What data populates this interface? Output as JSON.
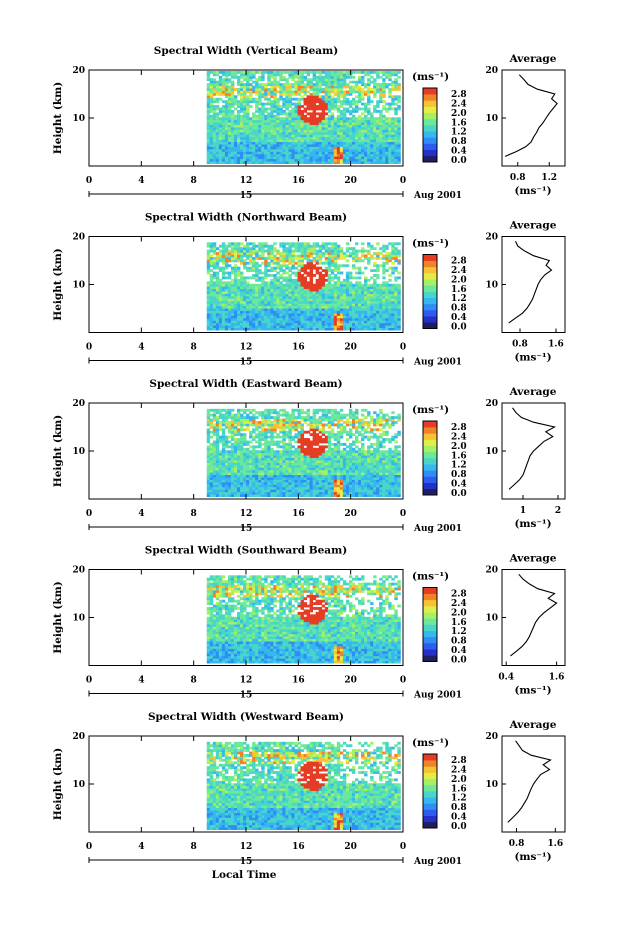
{
  "figure": {
    "xlabel": "Local Time",
    "date_label": "Aug 2001",
    "day_label": "15",
    "ylabel": "Height (km)",
    "colorbar_unit": "(ms⁻¹)",
    "colorbar_ticks": [
      "0.0",
      "0.4",
      "0.8",
      "1.2",
      "1.6",
      "2.0",
      "2.4",
      "2.8"
    ],
    "avg_title": "Average",
    "avg_xlabel": "(ms⁻¹)",
    "x_ticks": [
      "0",
      "4",
      "8",
      "12",
      "16",
      "20",
      "0"
    ],
    "y_ticks": [
      "20",
      "10"
    ]
  },
  "chart_data": [
    {
      "type": "heatmap",
      "title": "Spectral Width (Vertical Beam)",
      "xlabel": "Local Time",
      "ylabel": "Height (km)",
      "xlim": [
        0,
        24
      ],
      "ylim": [
        0,
        20
      ],
      "data_start_hour": 9,
      "colorbar_range": [
        0.0,
        2.8
      ],
      "average_profile": {
        "title": "Average",
        "xlim": [
          0.6,
          1.4
        ],
        "x_ticks": [
          "0.8",
          "1.2"
        ],
        "xlabel": "(ms⁻¹)",
        "height_km": [
          2,
          3,
          4,
          5,
          6,
          7,
          8,
          9,
          10,
          11,
          12,
          13,
          14,
          15,
          16,
          17,
          18,
          19
        ],
        "width": [
          0.64,
          0.78,
          0.9,
          0.97,
          1.0,
          1.04,
          1.07,
          1.12,
          1.16,
          1.2,
          1.25,
          1.3,
          1.23,
          1.27,
          1.05,
          0.93,
          0.88,
          0.82
        ]
      }
    },
    {
      "type": "heatmap",
      "title": "Spectral Width (Northward Beam)",
      "xlabel": "Local Time",
      "ylabel": "Height (km)",
      "xlim": [
        0,
        24
      ],
      "ylim": [
        0,
        20
      ],
      "data_start_hour": 9,
      "colorbar_range": [
        0.0,
        2.8
      ],
      "average_profile": {
        "title": "Average",
        "xlim": [
          0.4,
          1.8
        ],
        "x_ticks": [
          "0.8",
          "1.6"
        ],
        "xlabel": "(ms⁻¹)",
        "height_km": [
          2,
          3,
          4,
          5,
          6,
          7,
          8,
          9,
          10,
          11,
          12,
          13,
          14,
          15,
          16,
          17,
          18,
          19
        ],
        "width": [
          0.55,
          0.7,
          0.85,
          0.95,
          1.02,
          1.08,
          1.12,
          1.16,
          1.2,
          1.26,
          1.35,
          1.5,
          1.38,
          1.45,
          1.1,
          0.9,
          0.75,
          0.7
        ]
      }
    },
    {
      "type": "heatmap",
      "title": "Spectral Width (Eastward Beam)",
      "xlabel": "Local Time",
      "ylabel": "Height (km)",
      "xlim": [
        0,
        24
      ],
      "ylim": [
        0,
        20
      ],
      "data_start_hour": 9,
      "colorbar_range": [
        0.0,
        2.8
      ],
      "average_profile": {
        "title": "Average",
        "xlim": [
          0.4,
          2.2
        ],
        "x_ticks": [
          "1",
          "2"
        ],
        "xlabel": "(ms⁻¹)",
        "height_km": [
          2,
          3,
          4,
          5,
          6,
          7,
          8,
          9,
          10,
          11,
          12,
          13,
          14,
          15,
          16,
          17,
          18,
          19
        ],
        "width": [
          0.6,
          0.75,
          0.9,
          1.0,
          1.05,
          1.1,
          1.15,
          1.2,
          1.3,
          1.45,
          1.6,
          1.85,
          1.65,
          1.9,
          1.3,
          0.95,
          0.8,
          0.7
        ]
      }
    },
    {
      "type": "heatmap",
      "title": "Spectral Width (Southward Beam)",
      "xlabel": "Local Time",
      "ylabel": "Height (km)",
      "xlim": [
        0,
        24
      ],
      "ylim": [
        0,
        20
      ],
      "data_start_hour": 9,
      "colorbar_range": [
        0.0,
        2.8
      ],
      "average_profile": {
        "title": "Average",
        "xlim": [
          0.3,
          1.8
        ],
        "x_ticks": [
          "0.4",
          "1.6"
        ],
        "xlabel": "(ms⁻¹)",
        "height_km": [
          2,
          3,
          4,
          5,
          6,
          7,
          8,
          9,
          10,
          11,
          12,
          13,
          14,
          15,
          16,
          17,
          18,
          19
        ],
        "width": [
          0.5,
          0.65,
          0.78,
          0.88,
          0.95,
          1.0,
          1.05,
          1.1,
          1.18,
          1.3,
          1.45,
          1.6,
          1.4,
          1.55,
          1.15,
          0.95,
          0.8,
          0.7
        ]
      }
    },
    {
      "type": "heatmap",
      "title": "Spectral Width (Westward Beam)",
      "xlabel": "Local Time",
      "ylabel": "Height (km)",
      "xlim": [
        0,
        24
      ],
      "ylim": [
        0,
        20
      ],
      "data_start_hour": 9,
      "colorbar_range": [
        0.0,
        2.8
      ],
      "average_profile": {
        "title": "Average",
        "xlim": [
          0.5,
          1.8
        ],
        "x_ticks": [
          "0.8",
          "1.6"
        ],
        "xlabel": "(ms⁻¹)",
        "height_km": [
          2,
          3,
          4,
          5,
          6,
          7,
          8,
          9,
          10,
          11,
          12,
          13,
          14,
          15,
          16,
          17,
          18,
          19
        ],
        "width": [
          0.62,
          0.72,
          0.82,
          0.9,
          0.96,
          1.02,
          1.06,
          1.1,
          1.15,
          1.22,
          1.3,
          1.48,
          1.35,
          1.5,
          1.1,
          0.92,
          0.85,
          0.78
        ]
      }
    }
  ]
}
